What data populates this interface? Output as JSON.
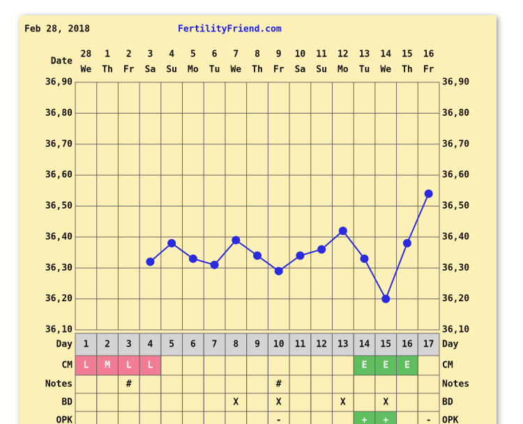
{
  "chart_data": {
    "type": "line",
    "title": "Feb 28, 2018",
    "site": "FertilityFriend.com",
    "x_label": "Date",
    "categories": [
      "28",
      "1",
      "2",
      "3",
      "4",
      "5",
      "6",
      "7",
      "8",
      "9",
      "10",
      "11",
      "12",
      "13",
      "14",
      "15",
      "16"
    ],
    "weekdays": [
      "We",
      "Th",
      "Fr",
      "Sa",
      "Su",
      "Mo",
      "Tu",
      "We",
      "Th",
      "Fr",
      "Sa",
      "Su",
      "Mo",
      "Tu",
      "We",
      "Th",
      "Fr"
    ],
    "values": [
      null,
      null,
      null,
      36.32,
      36.38,
      36.33,
      36.31,
      36.39,
      36.34,
      36.29,
      36.34,
      36.36,
      36.42,
      36.33,
      36.2,
      36.38,
      36.54
    ],
    "color": "#2a2ae0",
    "ylim": [
      36.1,
      36.9
    ],
    "yticks": [
      {
        "value": 36.1,
        "label": "36,10"
      },
      {
        "value": 36.2,
        "label": "36,20"
      },
      {
        "value": 36.3,
        "label": "36,30"
      },
      {
        "value": 36.4,
        "label": "36,40"
      },
      {
        "value": 36.5,
        "label": "36,50"
      },
      {
        "value": 36.6,
        "label": "36,60"
      },
      {
        "value": 36.7,
        "label": "36,70"
      },
      {
        "value": 36.8,
        "label": "36,80"
      },
      {
        "value": 36.9,
        "label": "36,90"
      }
    ],
    "grid": true,
    "table": [
      {
        "label": "Day",
        "cells": [
          "1",
          "2",
          "3",
          "4",
          "5",
          "6",
          "7",
          "8",
          "9",
          "10",
          "11",
          "12",
          "13",
          "14",
          "15",
          "16",
          "17"
        ],
        "fill": "#d4d4d4"
      },
      {
        "label": "CM",
        "cells": [
          "L",
          "M",
          "L",
          "L",
          null,
          null,
          null,
          null,
          null,
          null,
          null,
          null,
          null,
          "E",
          "E",
          "E",
          null
        ],
        "colors": {
          "L": "#f27c93",
          "M": "#f27c93",
          "E": "#5fbf5f"
        }
      },
      {
        "label": "Notes",
        "cells": [
          null,
          null,
          "#",
          null,
          null,
          null,
          null,
          null,
          null,
          "#",
          null,
          null,
          null,
          null,
          null,
          null,
          null
        ]
      },
      {
        "label": "BD",
        "cells": [
          null,
          null,
          null,
          null,
          null,
          null,
          null,
          "X",
          null,
          "X",
          null,
          null,
          "X",
          null,
          "X",
          null,
          null
        ]
      },
      {
        "label": "OPK",
        "cells": [
          null,
          null,
          null,
          null,
          null,
          null,
          null,
          null,
          null,
          "-",
          null,
          null,
          null,
          "+",
          "+",
          null,
          "-"
        ],
        "colors": {
          "+": "#5fbf5f"
        }
      }
    ]
  }
}
